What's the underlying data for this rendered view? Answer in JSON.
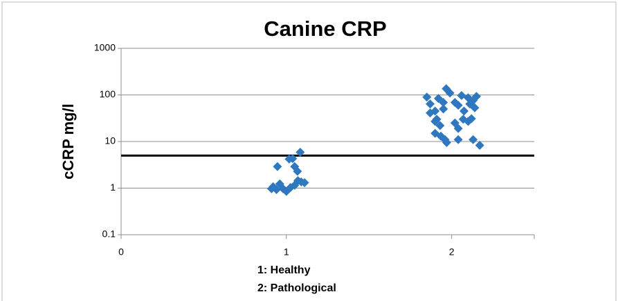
{
  "chart_data": {
    "type": "scatter",
    "title": "Canine CRP",
    "y_label": "cCRP mg/l",
    "notes": [
      "1: Healthy",
      "2: Pathological"
    ],
    "log_y": true,
    "grid": true,
    "reference_line": 5,
    "xlim": [
      0,
      2.5
    ],
    "xticks": [
      0,
      1,
      2
    ],
    "ylim": [
      0.1,
      1000
    ],
    "yticks": [
      0.1,
      1,
      10,
      100,
      1000
    ],
    "series": [
      {
        "name": "Healthy",
        "color": "#2f78bf",
        "x": [
          0.946,
          1.017,
          1.038,
          1.05,
          1.067,
          1.084,
          0.92,
          0.94,
          0.96,
          0.98,
          1.0,
          1.025,
          1.05,
          1.07,
          1.09,
          1.11,
          0.91
        ],
        "values": [
          2.9,
          4.2,
          4.3,
          2.9,
          2.3,
          5.9,
          1.07,
          0.93,
          1.23,
          0.97,
          0.85,
          1.03,
          1.15,
          1.45,
          1.36,
          1.31,
          0.97
        ]
      },
      {
        "name": "Pathological",
        "color": "#2f78bf",
        "x": [
          1.967,
          1.99,
          1.95,
          1.92,
          1.85,
          1.87,
          1.87,
          1.9,
          1.91,
          1.93,
          1.9,
          1.935,
          1.96,
          1.97,
          2.02,
          2.04,
          2.06,
          2.075,
          2.1,
          2.11,
          2.13,
          2.14,
          2.15,
          2.04,
          2.02,
          2.07,
          2.1,
          2.12,
          2.13,
          2.04,
          2.17,
          1.9,
          1.95
        ],
        "values": [
          136,
          110,
          69,
          84,
          90,
          64,
          41,
          27,
          30,
          22,
          15,
          13,
          11,
          9.5,
          69,
          60,
          97,
          45,
          87,
          64,
          76,
          53,
          93,
          19,
          25,
          30,
          27,
          31,
          11,
          11,
          8.3,
          45,
          50
        ]
      }
    ]
  }
}
